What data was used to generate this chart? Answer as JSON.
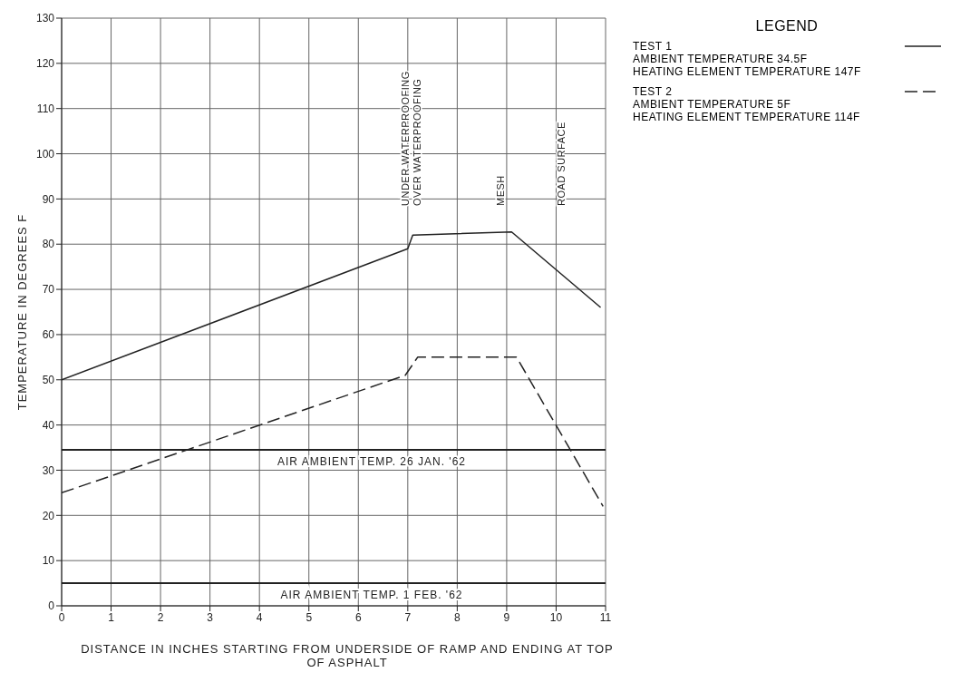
{
  "chart_data": {
    "type": "line",
    "xlabel": "DISTANCE IN INCHES STARTING FROM UNDERSIDE OF RAMP AND ENDING AT TOP OF ASPHALT",
    "ylabel": "TEMPERATURE IN DEGREES F",
    "legend_title": "LEGEND",
    "legend": "right",
    "grid": true,
    "marker": "none",
    "xlim": [
      0,
      11
    ],
    "xticks": [
      0,
      1,
      2,
      3,
      4,
      5,
      6,
      7,
      8,
      9,
      10,
      11
    ],
    "ylim": [
      0,
      130
    ],
    "yticks": [
      0,
      10,
      20,
      30,
      40,
      50,
      60,
      70,
      80,
      90,
      100,
      110,
      120,
      130
    ],
    "series": [
      {
        "name": "TEST 1",
        "color": "#222222",
        "line_style": "solid",
        "x": [
          0,
          7,
          7.1,
          9.1,
          10.9
        ],
        "values": [
          50,
          79,
          82,
          82.7,
          66
        ]
      },
      {
        "name": "TEST 2",
        "color": "#222222",
        "line_style": "dashed",
        "x": [
          0,
          6.95,
          7.2,
          9.2,
          10.95
        ],
        "values": [
          25,
          51,
          55,
          55,
          22
        ]
      }
    ],
    "ref_lines": [
      {
        "axis": "y",
        "value": 34.5,
        "label": "AIR AMBIENT TEMP. 26 JAN. '62",
        "color": "#222222"
      },
      {
        "axis": "y",
        "value": 5,
        "label": "AIR AMBIENT TEMP. 1 FEB. '62",
        "color": "#222222"
      }
    ],
    "annotations": [
      "UNDER WATERPROOFING",
      "OVER WATERPROOFING",
      "MESH",
      "ROAD SURFACE",
      "AMBIENT TEMPERATURE 34.5F",
      "HEATING ELEMENT TEMPERATURE 147F",
      "AMBIENT TEMPERATURE 5F",
      "HEATING ELEMENT TEMPERATURE 114F"
    ]
  }
}
